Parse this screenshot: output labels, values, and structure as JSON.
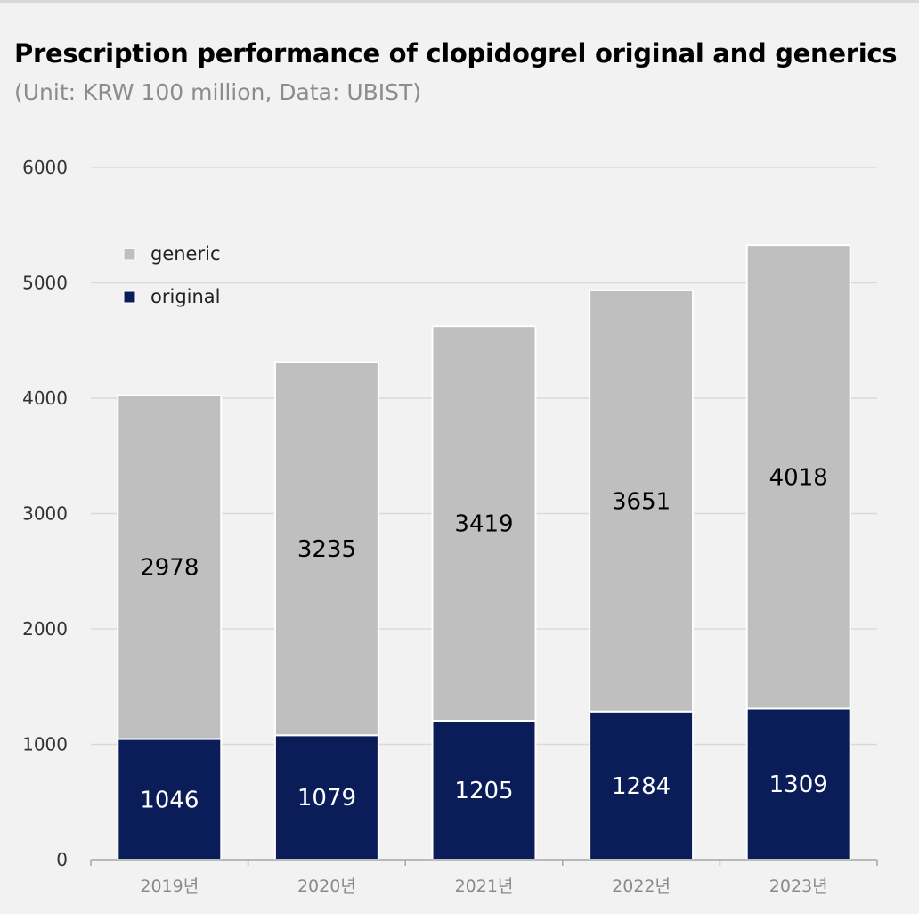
{
  "title": "Prescription performance of clopidogrel original and generics",
  "subtitle": "(Unit: KRW 100 million, Data: UBIST)",
  "chart_data": {
    "type": "bar",
    "stacked": true,
    "title": "Prescription performance of clopidogrel original and generics",
    "subtitle": "(Unit: KRW 100 million, Data: UBIST)",
    "categories": [
      "2019년",
      "2020년",
      "2021년",
      "2022년",
      "2023년"
    ],
    "series": [
      {
        "name": "original",
        "values": [
          1046,
          1079,
          1205,
          1284,
          1309
        ],
        "color": "#0b1d58",
        "label_color": "#ffffff"
      },
      {
        "name": "generic",
        "values": [
          2978,
          3235,
          3419,
          3651,
          4018
        ],
        "color": "#bfbfbf",
        "label_color": "#000000"
      }
    ],
    "legend_order": [
      "generic",
      "original"
    ],
    "y_ticks": [
      "0",
      "1000",
      "2000",
      "3000",
      "4000",
      "5000",
      "6000"
    ],
    "ylim": [
      0,
      6000
    ],
    "grid": true,
    "legend_position": "top-left",
    "xlabel": "",
    "ylabel": ""
  }
}
